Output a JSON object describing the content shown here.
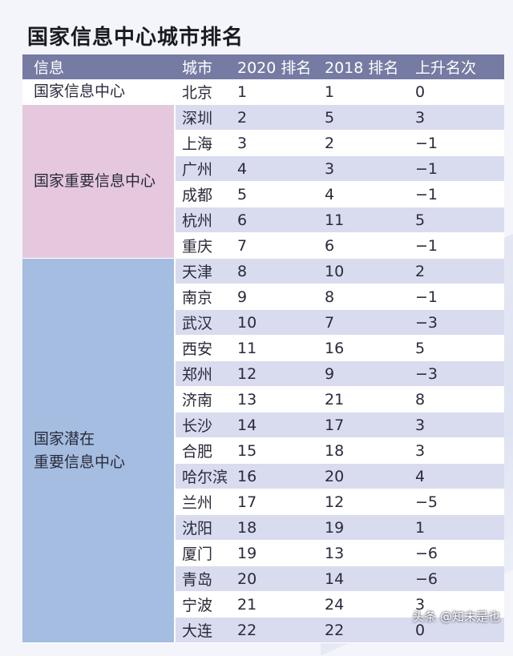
{
  "title": "国家信息中心城市排名",
  "headers": [
    "信息",
    "城市",
    "2020 排名",
    "2018 排名",
    "上升名次"
  ],
  "groups": [
    {
      "label": "国家信息中心",
      "rows": [
        [
          "北京",
          "1",
          "1",
          "0"
        ]
      ]
    },
    {
      "label": "国家重要信息中心",
      "rows": [
        [
          "深圳",
          "2",
          "5",
          "3"
        ],
        [
          "上海",
          "3",
          "2",
          "−1"
        ],
        [
          "广州",
          "4",
          "3",
          "−1"
        ],
        [
          "成都",
          "5",
          "4",
          "−1"
        ],
        [
          "杭州",
          "6",
          "11",
          "5"
        ],
        [
          "重庆",
          "7",
          "6",
          "−1"
        ]
      ]
    },
    {
      "label": "国家潜在\n重要信息中心",
      "rows": [
        [
          "天津",
          "8",
          "10",
          "2"
        ],
        [
          "南京",
          "9",
          "8",
          "−1"
        ],
        [
          "武汉",
          "10",
          "7",
          "−3"
        ],
        [
          "西安",
          "11",
          "16",
          "5"
        ],
        [
          "郑州",
          "12",
          "9",
          "−3"
        ],
        [
          "济南",
          "13",
          "21",
          "8"
        ],
        [
          "长沙",
          "14",
          "17",
          "3"
        ],
        [
          "合肥",
          "15",
          "18",
          "3"
        ],
        [
          "哈尔滨",
          "16",
          "20",
          "4"
        ],
        [
          "兰州",
          "17",
          "12",
          "−5"
        ],
        [
          "沈阳",
          "18",
          "19",
          "1"
        ],
        [
          "厦门",
          "19",
          "13",
          "−6"
        ],
        [
          "青岛",
          "20",
          "14",
          "−6"
        ],
        [
          "宁波",
          "21",
          "24",
          "3"
        ],
        [
          "大连",
          "22",
          "22",
          "0"
        ]
      ]
    }
  ],
  "watermark": "头条 @知末是也"
}
